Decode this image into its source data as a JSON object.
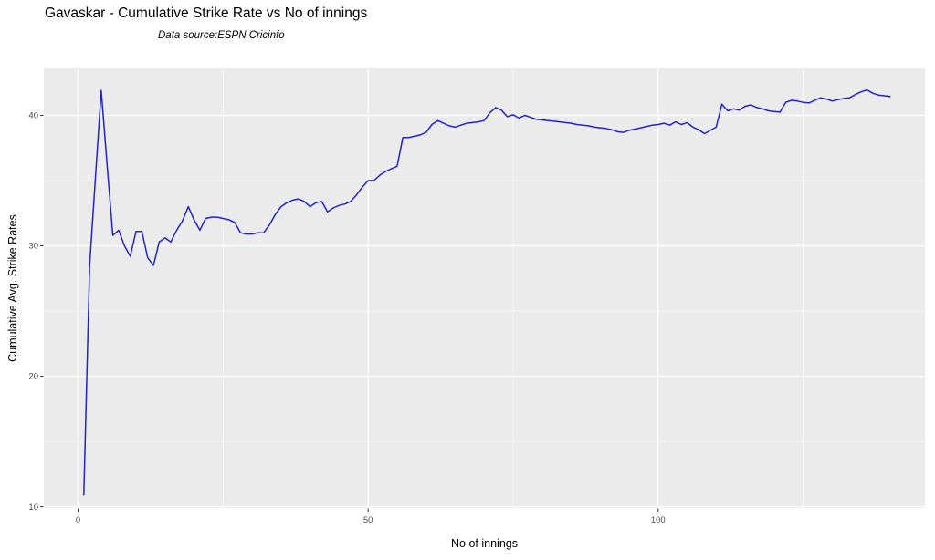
{
  "chart_data": {
    "type": "line",
    "title": "Gavaskar - Cumulative Strike Rate vs No of innings",
    "subtitle": "Data source:ESPN Cricinfo",
    "xlabel": "No of innings",
    "ylabel": "Cumulative Avg. Strike Rates",
    "legend_position": "none",
    "grid": "on",
    "panel_bg": "#ebebeb",
    "grid_color": "#ffffff",
    "tick_color": "#333333",
    "tick_label_color": "#4d4d4d",
    "x_ticks": [
      0,
      50,
      100
    ],
    "x_minor_ticks": [
      25,
      75,
      125
    ],
    "y_ticks": [
      10,
      20,
      30,
      40
    ],
    "y_minor_ticks": [
      15,
      25,
      35
    ],
    "x_domain": [
      -5.9,
      146.0
    ],
    "y_domain": [
      9.9,
      43.6
    ],
    "series": [
      {
        "name": "cumulative-avg-strike-rate",
        "color": "#2222cc",
        "x": [
          1,
          2,
          3,
          4,
          5,
          6,
          7,
          8,
          9,
          10,
          11,
          12,
          13,
          14,
          15,
          16,
          17,
          18,
          19,
          20,
          21,
          22,
          23,
          24,
          25,
          26,
          27,
          28,
          29,
          30,
          31,
          32,
          33,
          34,
          35,
          36,
          37,
          38,
          39,
          40,
          41,
          42,
          43,
          44,
          45,
          46,
          47,
          48,
          49,
          50,
          51,
          52,
          53,
          54,
          55,
          56,
          57,
          58,
          59,
          60,
          61,
          62,
          63,
          64,
          65,
          66,
          67,
          68,
          69,
          70,
          71,
          72,
          73,
          74,
          75,
          76,
          77,
          78,
          79,
          80,
          81,
          82,
          83,
          84,
          85,
          86,
          87,
          88,
          89,
          90,
          91,
          92,
          93,
          94,
          95,
          96,
          97,
          98,
          99,
          100,
          101,
          102,
          103,
          104,
          105,
          106,
          107,
          108,
          109,
          110,
          111,
          112,
          113,
          114,
          115,
          116,
          117,
          118,
          119,
          120,
          121,
          122,
          123,
          124,
          125,
          126,
          127,
          128,
          129,
          130,
          131,
          132,
          133,
          134,
          135,
          136,
          137,
          138,
          139,
          140
        ],
        "y": [
          10.9,
          28.5,
          35.2,
          41.9,
          36.3,
          30.8,
          31.2,
          30.0,
          29.2,
          31.1,
          31.1,
          29.1,
          28.5,
          30.3,
          30.6,
          30.3,
          31.2,
          31.9,
          33.0,
          32.0,
          31.2,
          32.1,
          32.2,
          32.2,
          32.1,
          32.0,
          31.8,
          31.0,
          30.9,
          30.9,
          31.0,
          31.0,
          31.6,
          32.4,
          33.0,
          33.3,
          33.5,
          33.6,
          33.4,
          33.0,
          33.3,
          33.4,
          32.6,
          32.9,
          33.1,
          33.2,
          33.4,
          33.9,
          34.5,
          35.0,
          35.0,
          35.4,
          35.7,
          35.9,
          36.1,
          38.3,
          38.3,
          38.4,
          38.5,
          38.7,
          39.3,
          39.6,
          39.4,
          39.2,
          39.1,
          39.25,
          39.4,
          39.45,
          39.5,
          39.6,
          40.2,
          40.6,
          40.4,
          39.9,
          40.05,
          39.8,
          40.0,
          39.85,
          39.7,
          39.65,
          39.6,
          39.55,
          39.5,
          39.45,
          39.4,
          39.3,
          39.25,
          39.2,
          39.1,
          39.05,
          39.0,
          38.9,
          38.75,
          38.7,
          38.85,
          38.95,
          39.05,
          39.15,
          39.25,
          39.3,
          39.4,
          39.25,
          39.5,
          39.3,
          39.45,
          39.1,
          38.9,
          38.6,
          38.85,
          39.1,
          40.85,
          40.35,
          40.5,
          40.4,
          40.7,
          40.8,
          40.6,
          40.5,
          40.35,
          40.3,
          40.25,
          41.0,
          41.15,
          41.1,
          41.0,
          40.95,
          41.15,
          41.35,
          41.25,
          41.1,
          41.2,
          41.3,
          41.35,
          41.6,
          41.8,
          41.95,
          41.7,
          41.55,
          41.5,
          41.45
        ]
      }
    ]
  }
}
